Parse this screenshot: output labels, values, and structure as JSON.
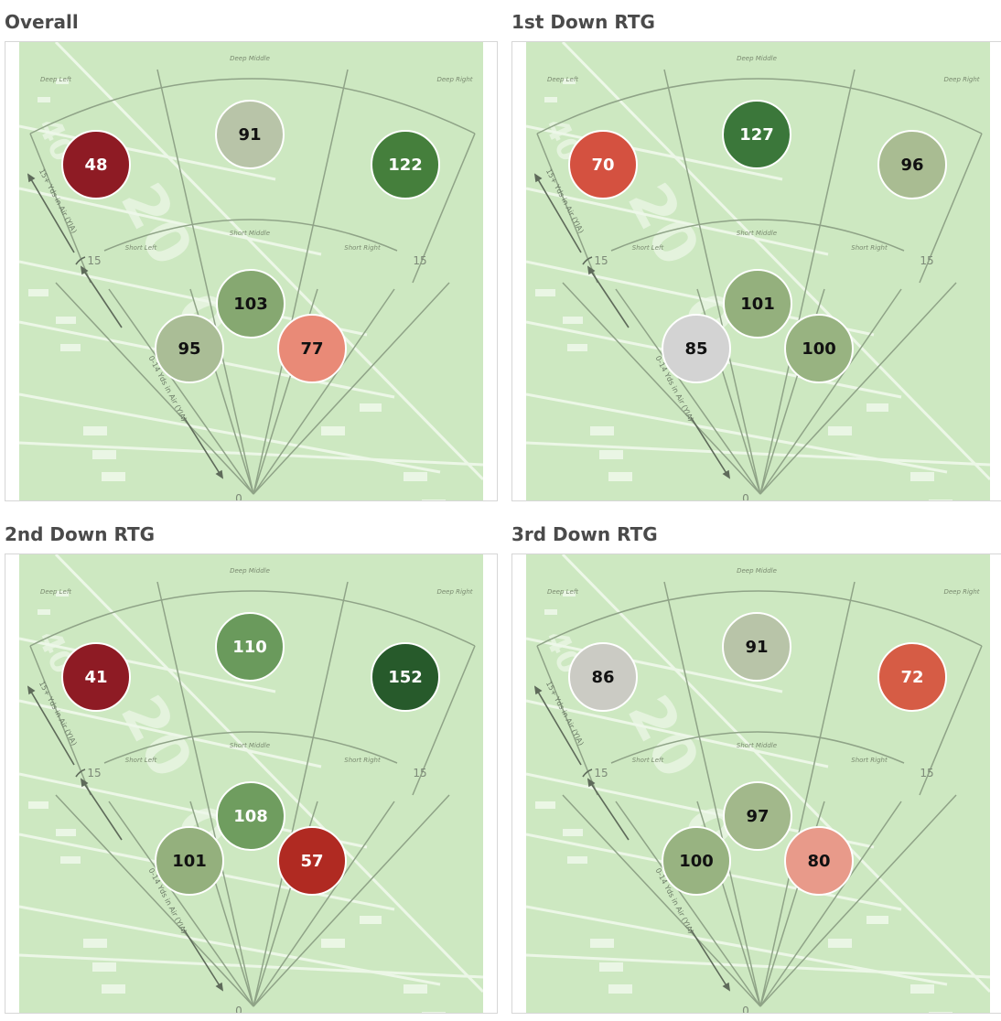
{
  "panels": [
    {
      "title": "Overall",
      "zones": {
        "deep_left": {
          "value": "48",
          "color": "#8e1b24",
          "text_color": "#ffffff"
        },
        "deep_middle": {
          "value": "91",
          "color": "#b8c4a8",
          "text_color": "#111111"
        },
        "deep_right": {
          "value": "122",
          "color": "#457f3c",
          "text_color": "#ffffff"
        },
        "short_middle": {
          "value": "103",
          "color": "#86a871",
          "text_color": "#111111"
        },
        "short_left": {
          "value": "95",
          "color": "#aabd96",
          "text_color": "#111111"
        },
        "short_right": {
          "value": "77",
          "color": "#e98a77",
          "text_color": "#111111"
        }
      }
    },
    {
      "title": "1st Down RTG",
      "zones": {
        "deep_left": {
          "value": "70",
          "color": "#d45140",
          "text_color": "#ffffff"
        },
        "deep_middle": {
          "value": "127",
          "color": "#3b773a",
          "text_color": "#ffffff"
        },
        "deep_right": {
          "value": "96",
          "color": "#a9bc92",
          "text_color": "#111111"
        },
        "short_middle": {
          "value": "101",
          "color": "#94b07d",
          "text_color": "#111111"
        },
        "short_left": {
          "value": "85",
          "color": "#d3d3d3",
          "text_color": "#111111"
        },
        "short_right": {
          "value": "100",
          "color": "#98b381",
          "text_color": "#111111"
        }
      }
    },
    {
      "title": "2nd Down RTG",
      "zones": {
        "deep_left": {
          "value": "41",
          "color": "#8e1b24",
          "text_color": "#ffffff"
        },
        "deep_middle": {
          "value": "110",
          "color": "#6a9a5c",
          "text_color": "#ffffff"
        },
        "deep_right": {
          "value": "152",
          "color": "#275a2b",
          "text_color": "#ffffff"
        },
        "short_middle": {
          "value": "108",
          "color": "#6f9d5f",
          "text_color": "#ffffff"
        },
        "short_left": {
          "value": "101",
          "color": "#94b07d",
          "text_color": "#111111"
        },
        "short_right": {
          "value": "57",
          "color": "#b02a22",
          "text_color": "#ffffff"
        }
      }
    },
    {
      "title": "3rd Down RTG",
      "zones": {
        "deep_left": {
          "value": "86",
          "color": "#cbcbc4",
          "text_color": "#111111"
        },
        "deep_middle": {
          "value": "91",
          "color": "#b8c4a8",
          "text_color": "#111111"
        },
        "deep_right": {
          "value": "72",
          "color": "#d65c45",
          "text_color": "#ffffff"
        },
        "short_middle": {
          "value": "97",
          "color": "#a2b88b",
          "text_color": "#111111"
        },
        "short_left": {
          "value": "100",
          "color": "#98b381",
          "text_color": "#111111"
        },
        "short_right": {
          "value": "80",
          "color": "#e89a8a",
          "text_color": "#111111"
        }
      }
    }
  ],
  "labels": {
    "deep_left": "Deep Left",
    "deep_middle": "Deep Middle",
    "deep_right": "Deep Right",
    "short_left": "Short Left",
    "short_middle": "Short Middle",
    "short_right": "Short Right",
    "yard_15_left": "15",
    "yard_15_right": "15",
    "yard_0": "0",
    "deep_axis": "15+ Yds in Air (YIA)",
    "short_axis": "0-14 Yds in Air (YIA)"
  }
}
